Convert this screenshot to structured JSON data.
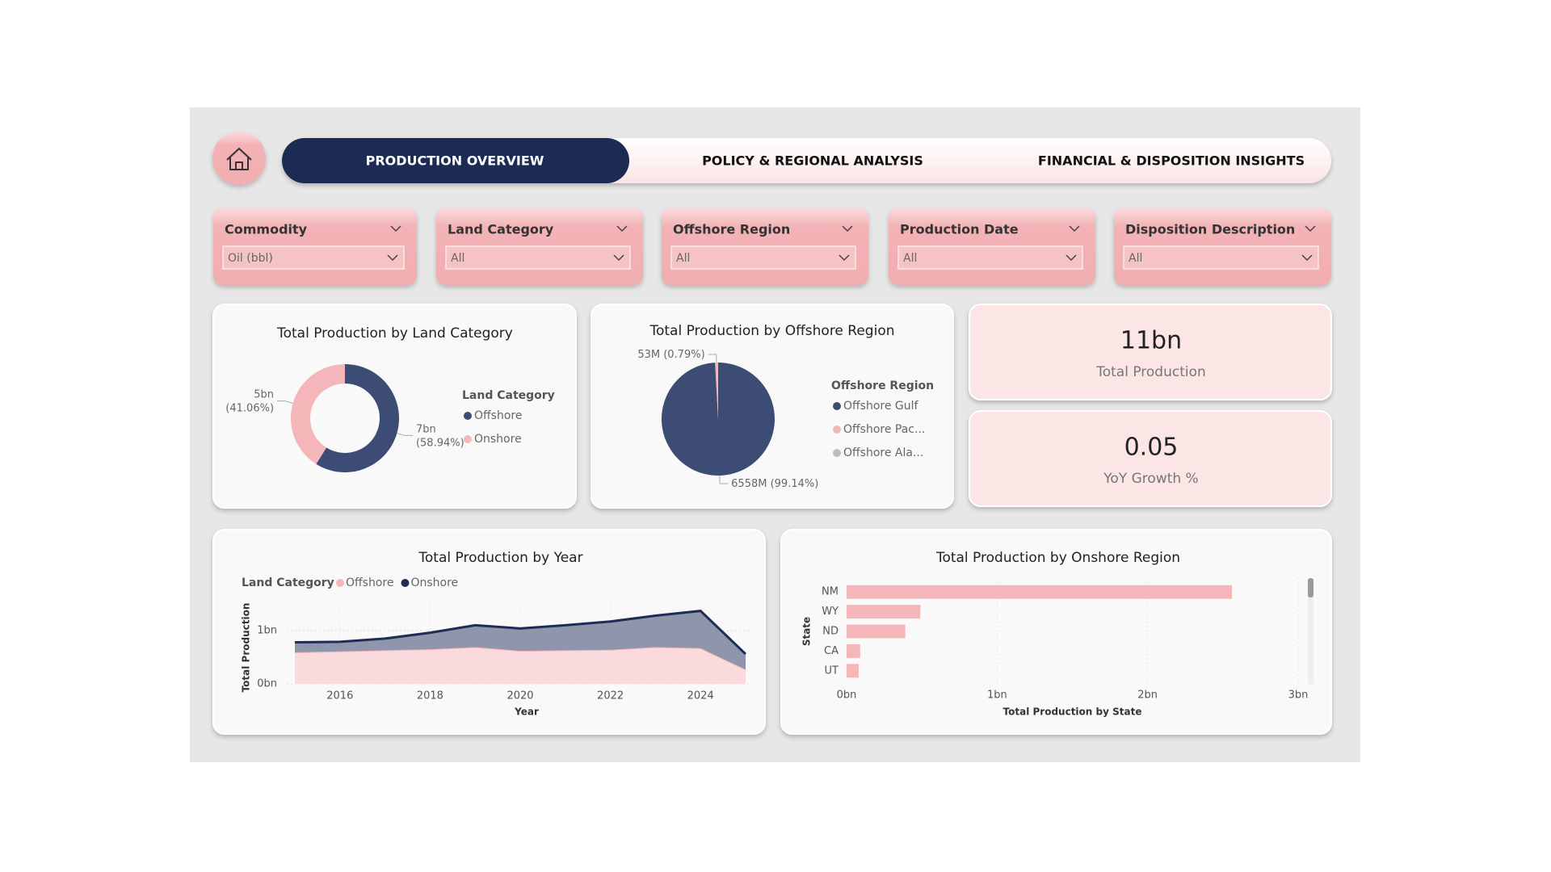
{
  "nav": {
    "tabs": [
      "PRODUCTION OVERVIEW",
      "POLICY & REGIONAL ANALYSIS",
      "FINANCIAL & DISPOSITION INSIGHTS"
    ]
  },
  "filters": [
    {
      "label": "Commodity",
      "value": "Oil (bbl)"
    },
    {
      "label": "Land Category",
      "value": "All"
    },
    {
      "label": "Offshore Region",
      "value": "All"
    },
    {
      "label": "Production Date",
      "value": "All"
    },
    {
      "label": "Disposition Description",
      "value": "All"
    }
  ],
  "kpis": [
    {
      "value": "11bn",
      "label": "Total Production"
    },
    {
      "value": "0.05",
      "label": "YoY Growth %"
    }
  ],
  "chart_data": [
    {
      "type": "donut",
      "title": "Total Production by Land Category",
      "legend_title": "Land Category",
      "categories": [
        "Offshore",
        "Onshore"
      ],
      "values": [
        58.94,
        41.06
      ],
      "value_labels": [
        [
          "7bn",
          "(58.94%)"
        ],
        [
          "5bn",
          "(41.06%)"
        ]
      ],
      "colors": [
        "#3d4c75",
        "#f4b6b8"
      ]
    },
    {
      "type": "pie",
      "title": "Total Production by Offshore Region",
      "legend_title": "Offshore Region",
      "categories": [
        "Offshore Gulf",
        "Offshore Pac...",
        "Offshore Ala..."
      ],
      "values": [
        99.14,
        0.79,
        0.07
      ],
      "value_labels": [
        "6558M (99.14%)",
        "53M (0.79%)",
        null
      ],
      "colors": [
        "#3d4c75",
        "#f4b6b8",
        "#bdbdbd"
      ]
    },
    {
      "type": "area",
      "stacked": true,
      "title": "Total Production by Year",
      "legend_title": "Land Category",
      "x": [
        2015,
        2016,
        2017,
        2018,
        2019,
        2020,
        2021,
        2022,
        2023,
        2024,
        2025
      ],
      "series": [
        {
          "name": "Offshore",
          "color": "#f4b6b8",
          "values": [
            0.59,
            0.61,
            0.63,
            0.65,
            0.69,
            0.62,
            0.63,
            0.64,
            0.69,
            0.67,
            0.27
          ]
        },
        {
          "name": "Onshore",
          "color": "#1f2d56",
          "values": [
            0.19,
            0.18,
            0.22,
            0.31,
            0.41,
            0.42,
            0.47,
            0.53,
            0.59,
            0.7,
            0.29
          ]
        }
      ],
      "xlim": [
        2015,
        2025
      ],
      "xticks": [
        2016,
        2018,
        2020,
        2022,
        2024
      ],
      "ylim": [
        0,
        1.5
      ],
      "yticks": [
        {
          "value": 0,
          "label": "0bn"
        },
        {
          "value": 1,
          "label": "1bn"
        }
      ],
      "x_label": "Year",
      "y_label": "Total Production",
      "grid": true
    },
    {
      "type": "hbar",
      "title": "Total Production by Onshore Region",
      "categories": [
        "NM",
        "WY",
        "ND",
        "CA",
        "UT"
      ],
      "values": [
        2.56,
        0.49,
        0.39,
        0.09,
        0.08
      ],
      "color": "#f4b6b8",
      "xlim": [
        0,
        3
      ],
      "xticks": [
        {
          "value": 0,
          "label": "0bn"
        },
        {
          "value": 1,
          "label": "1bn"
        },
        {
          "value": 2,
          "label": "2bn"
        },
        {
          "value": 3,
          "label": "3bn"
        }
      ],
      "x_label": "Total Production by State",
      "y_label": "State",
      "grid": true
    }
  ]
}
